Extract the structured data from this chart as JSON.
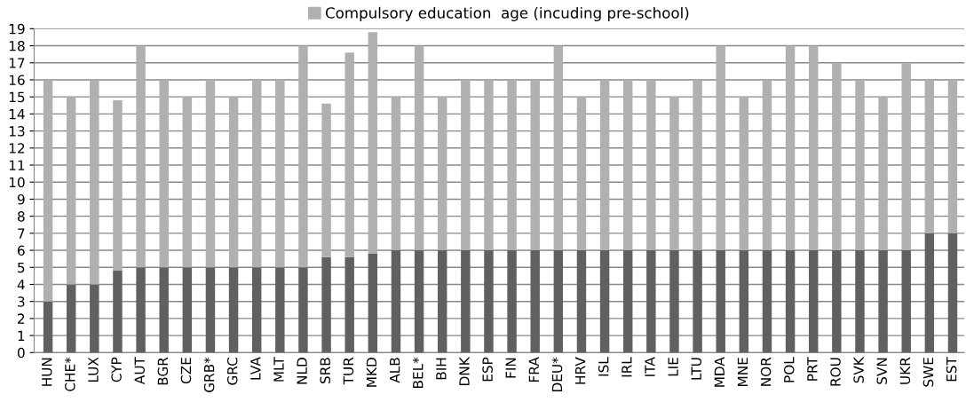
{
  "chart_data": {
    "type": "bar",
    "stacked": true,
    "categories": [
      "HUN",
      "CHE*",
      "LUX",
      "CYP",
      "AUT",
      "BGR",
      "CZE",
      "GRB*",
      "GRC",
      "LVA",
      "MLT",
      "NLD",
      "SRB",
      "TUR",
      "MKD",
      "ALB",
      "BEL*",
      "BIH",
      "DNK",
      "ESP",
      "FIN",
      "FRA",
      "DEU*",
      "HRV",
      "ISL",
      "IRL",
      "ITA",
      "LIE",
      "LTU",
      "MDA",
      "MNE",
      "NOR",
      "POL",
      "PRT",
      "ROU",
      "SVK",
      "SVN",
      "UKR",
      "SWE",
      "EST"
    ],
    "series": [
      {
        "color": "#606060",
        "values": [
          3,
          4,
          4,
          4.8,
          5,
          5,
          5,
          5,
          5,
          5,
          5,
          5,
          5.6,
          5.6,
          5.8,
          6,
          6,
          6,
          6,
          6,
          6,
          6,
          6,
          6,
          6,
          6,
          6,
          6,
          6,
          6,
          6,
          6,
          6,
          6,
          6,
          6,
          6,
          6,
          7,
          7
        ]
      },
      {
        "name": "Compulsory education  age (incuding pre-school)",
        "color": "#b0b0b0",
        "values": [
          13,
          11,
          12,
          10,
          13,
          11,
          10,
          11,
          10,
          11,
          11,
          13,
          9,
          12,
          13,
          9,
          12,
          9,
          10,
          10,
          10,
          10,
          12,
          9,
          10,
          10,
          10,
          9,
          10,
          12,
          9,
          10,
          12,
          12,
          11,
          10,
          9,
          11,
          9,
          9
        ]
      }
    ],
    "ylim": [
      0,
      19
    ],
    "yticks": [
      0,
      1,
      2,
      3,
      4,
      5,
      6,
      7,
      8,
      9,
      10,
      11,
      12,
      13,
      14,
      15,
      16,
      17,
      18,
      19
    ],
    "grid": "y",
    "legend": "top"
  }
}
